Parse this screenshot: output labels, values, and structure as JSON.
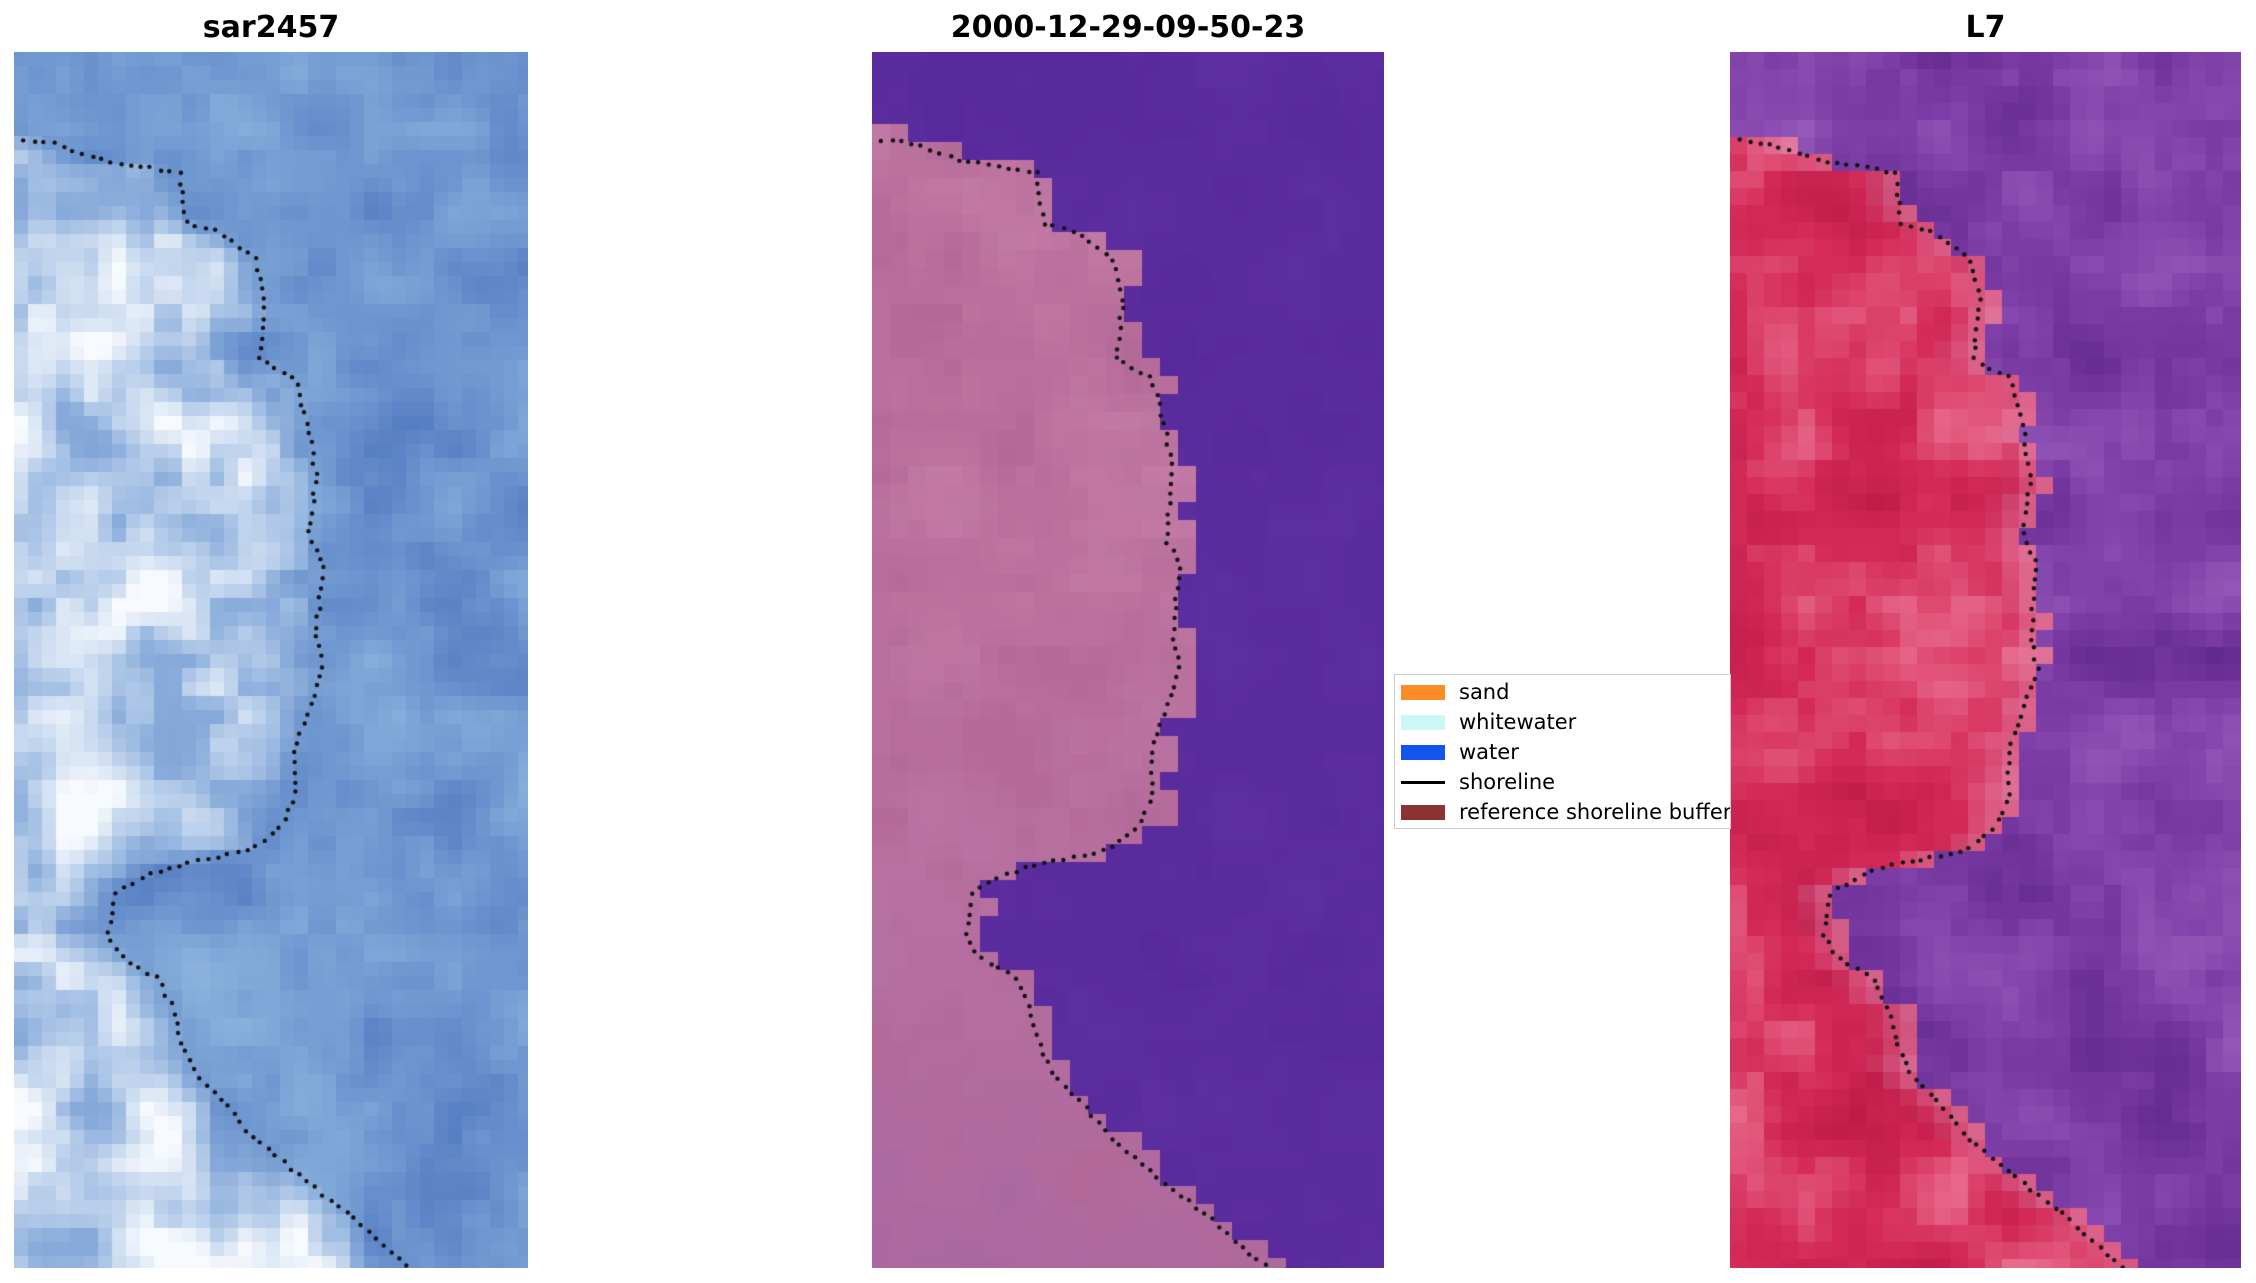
{
  "figure": {
    "background": "#ffffff",
    "shoreline_dot_color": "#111111",
    "panels": [
      {
        "title": "sar2457",
        "mode": "sar",
        "seed": 11,
        "block": 14,
        "palette": {
          "water_base": [
            112,
            152,
            208
          ],
          "water_var": 30,
          "land_tint": [
            170,
            200,
            234
          ],
          "highlight": [
            252,
            253,
            255
          ]
        }
      },
      {
        "title": "2000-12-29-09-50-23",
        "mode": "classified",
        "seed": 22,
        "block": 18,
        "boundary_offset": 0.03,
        "palette": {
          "water": [
            91,
            44,
            158
          ],
          "water_var": 8,
          "land_a": [
            176,
            102,
            150
          ],
          "land_b": [
            200,
            128,
            170
          ],
          "land_c": [
            148,
            86,
            156
          ]
        }
      },
      {
        "title": "L7",
        "mode": "l7",
        "seed": 33,
        "block": 17,
        "boundary_offset": 0.02,
        "palette": {
          "land_dark": [
            184,
            22,
            68
          ],
          "land_mid": [
            212,
            42,
            88
          ],
          "land_light": [
            236,
            120,
            152
          ],
          "edge_light": [
            224,
            152,
            188
          ],
          "water_dark": [
            95,
            40,
            140
          ],
          "water_mid": [
            124,
            60,
            166
          ],
          "water_light": [
            152,
            94,
            188
          ]
        }
      }
    ],
    "legend": {
      "items": [
        {
          "label": "sand",
          "swatch": "patch",
          "color": "#fb8c28"
        },
        {
          "label": "whitewater",
          "swatch": "patch",
          "color": "#ccf7f7"
        },
        {
          "label": "water",
          "swatch": "patch",
          "color": "#1155ee"
        },
        {
          "label": "shoreline",
          "swatch": "line",
          "color": "#000000"
        },
        {
          "label": "reference shoreline buffer",
          "swatch": "patch",
          "color": "#8b3333"
        }
      ]
    },
    "shoreline_path": [
      [
        0.02,
        0.072
      ],
      [
        0.084,
        0.076
      ],
      [
        0.182,
        0.09
      ],
      [
        0.322,
        0.099
      ],
      [
        0.336,
        0.141
      ],
      [
        0.392,
        0.147
      ],
      [
        0.47,
        0.17
      ],
      [
        0.49,
        0.206
      ],
      [
        0.476,
        0.253
      ],
      [
        0.546,
        0.267
      ],
      [
        0.574,
        0.312
      ],
      [
        0.588,
        0.348
      ],
      [
        0.574,
        0.401
      ],
      [
        0.602,
        0.419
      ],
      [
        0.588,
        0.478
      ],
      [
        0.602,
        0.508
      ],
      [
        0.546,
        0.573
      ],
      [
        0.546,
        0.614
      ],
      [
        0.518,
        0.638
      ],
      [
        0.462,
        0.656
      ],
      [
        0.308,
        0.67
      ],
      [
        0.266,
        0.676
      ],
      [
        0.196,
        0.691
      ],
      [
        0.182,
        0.727
      ],
      [
        0.21,
        0.744
      ],
      [
        0.28,
        0.762
      ],
      [
        0.308,
        0.786
      ],
      [
        0.322,
        0.809
      ],
      [
        0.35,
        0.839
      ],
      [
        0.42,
        0.869
      ],
      [
        0.462,
        0.892
      ],
      [
        0.532,
        0.916
      ],
      [
        0.602,
        0.94
      ],
      [
        0.658,
        0.957
      ],
      [
        0.7,
        0.975
      ],
      [
        0.77,
        0.999
      ]
    ]
  },
  "chart_data": {
    "type": "heatmap",
    "title": "shoreline detection comparison figure (3 image subplots + legend)",
    "panels": [
      {
        "title": "sar2457",
        "content": "SAR backscatter image: mottled blue water on right, bright white/light-blue land and surf pixels on left, black dotted detected shoreline meandering vertically"
      },
      {
        "title": "2000-12-29-09-50-23",
        "content": "classified satellite scene: mauve/pink land region on left, uniform violet-purple water on right with blocky class boundary, black dotted shoreline along boundary"
      },
      {
        "title": "L7",
        "content": "Landsat 7 false-colour image: crimson/red vegetation-land on left, purple water on right, light pink fringe at boundary, black dotted shoreline"
      }
    ],
    "legend_entries": [
      "sand",
      "whitewater",
      "water",
      "shoreline",
      "reference shoreline buffer"
    ],
    "legend_position": "between second and third panel, vertically centered",
    "grid": false
  }
}
